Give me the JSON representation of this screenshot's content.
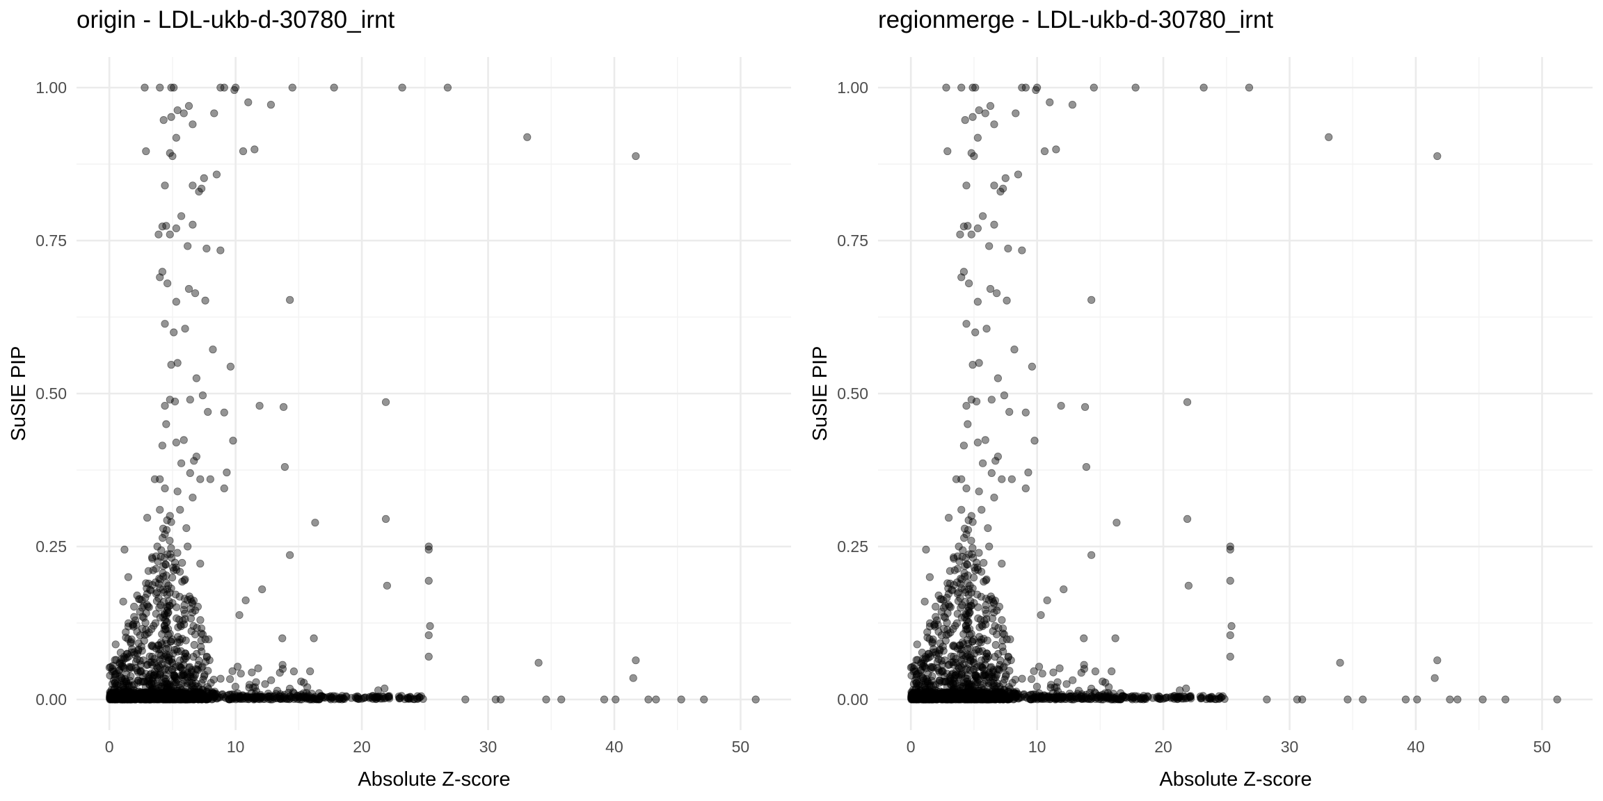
{
  "chart_data": [
    {
      "type": "scatter",
      "title": "origin - LDL-ukb-d-30780_irnt",
      "xlabel": "Absolute Z-score",
      "ylabel": "SuSIE PIP",
      "xlim": [
        -2.6,
        54.0
      ],
      "ylim": [
        -0.05,
        1.05
      ],
      "xticks": [
        0,
        10,
        20,
        30,
        40,
        50
      ],
      "xtick_labels": [
        "0",
        "10",
        "20",
        "30",
        "40",
        "50"
      ],
      "yticks": [
        0,
        0.25,
        0.5,
        0.75,
        1.0
      ],
      "ytick_labels": [
        "0.00",
        "0.25",
        "0.50",
        "0.75",
        "1.00"
      ],
      "grid": true,
      "legend": "none",
      "point_color": "#000000",
      "point_alpha": 0.42,
      "series": [
        {
          "x": [
            2.8,
            4.0,
            4.9,
            5.1,
            8.8,
            9.1,
            10.0,
            14.5,
            17.8,
            23.2,
            26.8,
            33.1,
            41.7,
            2.9,
            10.6,
            11.5,
            12.8,
            11.0,
            9.9,
            6.3,
            6.6,
            4.3,
            4.9,
            5.4,
            5.9,
            8.3,
            7.5,
            4.4,
            4.8,
            5.0,
            5.3,
            6.6,
            8.5,
            7.3,
            7.1,
            4.2,
            4.5,
            5.3,
            3.9,
            5.7,
            6.6,
            8.8,
            7.7,
            6.2,
            4.8,
            4.0,
            4.6,
            5.3,
            4.2,
            6.3,
            6.8,
            7.6,
            8.2,
            4.4,
            5.1,
            6.0,
            4.9,
            5.4,
            6.9,
            4.8,
            7.4,
            9.6,
            14.3,
            4.4,
            5.2,
            6.4,
            7.8,
            11.9,
            13.8,
            21.9,
            4.5,
            5.9,
            6.7,
            9.8,
            9.1,
            4.2,
            5.3,
            6.9,
            5.7,
            4.0,
            6.4,
            7.2,
            9.3,
            13.9,
            3.6,
            4.4,
            5.4,
            6.6,
            8.0,
            9.1,
            4.8,
            5.6,
            6.1,
            4.9,
            3.0,
            4.0,
            4.4,
            16.3,
            14.3,
            21.9,
            25.3,
            25.3,
            25.3,
            25.4,
            25.3,
            25.3,
            22.0,
            1.2,
            7.2,
            6.2,
            3.7,
            10.8,
            12.1,
            10.3,
            13.7,
            16.2,
            15.9,
            34.0,
            41.7,
            41.5,
            21.8,
            21.3,
            28.2,
            39.2,
            40.1,
            42.7,
            45.3,
            47.1,
            51.2,
            43.3,
            35.8,
            34.6,
            30.6,
            31.0,
            1.5,
            1.1,
            1.3,
            0.5,
            2.2,
            3.1,
            3.4,
            3.8,
            2.6,
            2.9,
            3.7
          ],
          "y": [
            1.0,
            1.0,
            1.0,
            1.0,
            1.0,
            1.0,
            1.0,
            1.0,
            1.0,
            1.0,
            1.0,
            0.919,
            0.888,
            0.896,
            0.896,
            0.899,
            0.972,
            0.976,
            0.996,
            0.97,
            0.94,
            0.947,
            0.952,
            0.963,
            0.958,
            0.958,
            0.852,
            0.84,
            0.893,
            0.888,
            0.918,
            0.84,
            0.858,
            0.835,
            0.83,
            0.773,
            0.774,
            0.77,
            0.76,
            0.79,
            0.776,
            0.734,
            0.737,
            0.741,
            0.76,
            0.69,
            0.68,
            0.65,
            0.699,
            0.671,
            0.664,
            0.652,
            0.572,
            0.614,
            0.6,
            0.606,
            0.547,
            0.55,
            0.525,
            0.49,
            0.497,
            0.544,
            0.653,
            0.48,
            0.487,
            0.49,
            0.47,
            0.48,
            0.478,
            0.486,
            0.45,
            0.424,
            0.39,
            0.423,
            0.469,
            0.415,
            0.42,
            0.397,
            0.386,
            0.36,
            0.37,
            0.36,
            0.371,
            0.38,
            0.36,
            0.345,
            0.34,
            0.33,
            0.36,
            0.345,
            0.3,
            0.31,
            0.28,
            0.29,
            0.297,
            0.31,
            0.27,
            0.289,
            0.236,
            0.295,
            0.25,
            0.245,
            0.194,
            0.12,
            0.105,
            0.07,
            0.186,
            0.245,
            0.222,
            0.25,
            0.234,
            0.162,
            0.18,
            0.138,
            0.1,
            0.1,
            0.046,
            0.06,
            0.064,
            0.035,
            0.018,
            0.015,
            0.0,
            0.0,
            0.0,
            0.0,
            0.0,
            0.0,
            0.0,
            0.0,
            0.0,
            0.0,
            0.0,
            0.0,
            0.2,
            0.16,
            0.11,
            0.09,
            0.17,
            0.21,
            0.23,
            0.25,
            0.15,
            0.19,
            0.14
          ]
        }
      ],
      "dense_cluster": {
        "description_hidden": true,
        "x_peak": 4.5,
        "x_spread": 1.9,
        "y_max": 0.24
      }
    },
    {
      "type": "scatter",
      "title": "regionmerge - LDL-ukb-d-30780_irnt",
      "xlabel": "Absolute Z-score",
      "ylabel": "SuSIE PIP",
      "xlim": [
        -2.6,
        54.0
      ],
      "ylim": [
        -0.05,
        1.05
      ],
      "xticks": [
        0,
        10,
        20,
        30,
        40,
        50
      ],
      "xtick_labels": [
        "0",
        "10",
        "20",
        "30",
        "40",
        "50"
      ],
      "yticks": [
        0,
        0.25,
        0.5,
        0.75,
        1.0
      ],
      "ytick_labels": [
        "0.00",
        "0.25",
        "0.50",
        "0.75",
        "1.00"
      ],
      "grid": true,
      "legend": "none",
      "point_color": "#000000",
      "point_alpha": 0.42,
      "series": [
        {
          "x": [
            2.8,
            4.0,
            4.9,
            5.1,
            8.8,
            9.1,
            10.0,
            14.5,
            17.8,
            23.2,
            26.8,
            33.1,
            41.7,
            2.9,
            10.6,
            11.5,
            12.8,
            11.0,
            9.9,
            6.3,
            6.6,
            4.3,
            4.9,
            5.4,
            5.9,
            8.3,
            7.5,
            4.4,
            4.8,
            5.0,
            5.3,
            6.6,
            8.5,
            7.3,
            7.1,
            4.2,
            4.5,
            5.3,
            3.9,
            5.7,
            6.6,
            8.8,
            7.7,
            6.2,
            4.8,
            4.0,
            4.6,
            5.3,
            4.2,
            6.3,
            6.8,
            7.6,
            8.2,
            4.4,
            5.1,
            6.0,
            4.9,
            5.4,
            6.9,
            4.8,
            7.4,
            9.6,
            14.3,
            4.4,
            5.2,
            6.4,
            7.8,
            11.9,
            13.8,
            21.9,
            4.5,
            5.9,
            6.7,
            9.8,
            9.1,
            4.2,
            5.3,
            6.9,
            5.7,
            4.0,
            6.4,
            7.2,
            9.3,
            13.9,
            3.6,
            4.4,
            5.4,
            6.6,
            8.0,
            9.1,
            4.8,
            5.6,
            6.1,
            4.9,
            3.0,
            4.0,
            4.4,
            16.3,
            14.3,
            21.9,
            25.3,
            25.3,
            25.3,
            25.4,
            25.3,
            25.3,
            22.0,
            1.2,
            7.2,
            6.2,
            3.7,
            10.8,
            12.1,
            10.3,
            13.7,
            16.2,
            15.9,
            34.0,
            41.7,
            41.5,
            21.8,
            21.3,
            28.2,
            39.2,
            40.1,
            42.7,
            45.3,
            47.1,
            51.2,
            43.3,
            35.8,
            34.6,
            30.6,
            31.0,
            1.5,
            1.1,
            1.3,
            0.5,
            2.2,
            3.1,
            3.4,
            3.8,
            2.6,
            2.9,
            3.7
          ],
          "y": [
            1.0,
            1.0,
            1.0,
            1.0,
            1.0,
            1.0,
            1.0,
            1.0,
            1.0,
            1.0,
            1.0,
            0.919,
            0.888,
            0.896,
            0.896,
            0.899,
            0.972,
            0.976,
            0.996,
            0.97,
            0.94,
            0.947,
            0.952,
            0.963,
            0.958,
            0.958,
            0.852,
            0.84,
            0.893,
            0.888,
            0.918,
            0.84,
            0.858,
            0.835,
            0.83,
            0.773,
            0.774,
            0.77,
            0.76,
            0.79,
            0.776,
            0.734,
            0.737,
            0.741,
            0.76,
            0.69,
            0.68,
            0.65,
            0.699,
            0.671,
            0.664,
            0.652,
            0.572,
            0.614,
            0.6,
            0.606,
            0.547,
            0.55,
            0.525,
            0.49,
            0.497,
            0.544,
            0.653,
            0.48,
            0.487,
            0.49,
            0.47,
            0.48,
            0.478,
            0.486,
            0.45,
            0.424,
            0.39,
            0.423,
            0.469,
            0.415,
            0.42,
            0.397,
            0.386,
            0.36,
            0.37,
            0.36,
            0.371,
            0.38,
            0.36,
            0.345,
            0.34,
            0.33,
            0.36,
            0.345,
            0.3,
            0.31,
            0.28,
            0.29,
            0.297,
            0.31,
            0.27,
            0.289,
            0.236,
            0.295,
            0.25,
            0.245,
            0.194,
            0.12,
            0.105,
            0.07,
            0.186,
            0.245,
            0.222,
            0.25,
            0.234,
            0.162,
            0.18,
            0.138,
            0.1,
            0.1,
            0.046,
            0.06,
            0.064,
            0.035,
            0.018,
            0.015,
            0.0,
            0.0,
            0.0,
            0.0,
            0.0,
            0.0,
            0.0,
            0.0,
            0.0,
            0.0,
            0.0,
            0.0,
            0.2,
            0.16,
            0.11,
            0.09,
            0.17,
            0.21,
            0.23,
            0.25,
            0.15,
            0.19,
            0.14
          ]
        }
      ],
      "dense_cluster": {
        "description_hidden": true,
        "x_peak": 4.5,
        "x_spread": 1.9,
        "y_max": 0.24
      }
    }
  ]
}
